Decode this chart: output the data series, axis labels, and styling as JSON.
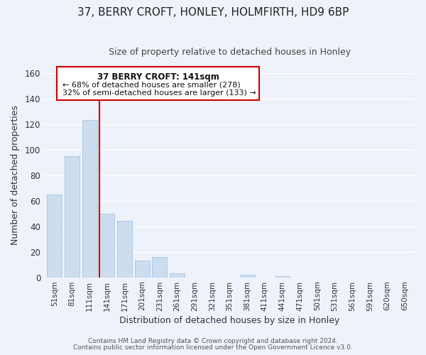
{
  "title": "37, BERRY CROFT, HONLEY, HOLMFIRTH, HD9 6BP",
  "subtitle": "Size of property relative to detached houses in Honley",
  "xlabel": "Distribution of detached houses by size in Honley",
  "ylabel": "Number of detached properties",
  "bar_labels": [
    "51sqm",
    "81sqm",
    "111sqm",
    "141sqm",
    "171sqm",
    "201sqm",
    "231sqm",
    "261sqm",
    "291sqm",
    "321sqm",
    "351sqm",
    "381sqm",
    "411sqm",
    "441sqm",
    "471sqm",
    "501sqm",
    "531sqm",
    "561sqm",
    "591sqm",
    "620sqm",
    "650sqm"
  ],
  "bar_values": [
    65,
    95,
    123,
    50,
    44,
    13,
    16,
    3,
    0,
    0,
    0,
    2,
    0,
    1,
    0,
    0,
    0,
    0,
    0,
    0,
    0
  ],
  "bar_color": "#ccddf0",
  "bar_edge_color": "#a8c4e0",
  "vline_index": 3,
  "vline_color": "#cc0000",
  "ylim": [
    0,
    160
  ],
  "yticks": [
    0,
    20,
    40,
    60,
    80,
    100,
    120,
    140,
    160
  ],
  "annotation_title": "37 BERRY CROFT: 141sqm",
  "annotation_line1": "← 68% of detached houses are smaller (278)",
  "annotation_line2": "32% of semi-detached houses are larger (133) →",
  "annotation_box_facecolor": "#ffffff",
  "annotation_box_edgecolor": "#cc0000",
  "footer1": "Contains HM Land Registry data © Crown copyright and database right 2024.",
  "footer2": "Contains public sector information licensed under the Open Government Licence v3.0.",
  "bg_color": "#eef2fa",
  "grid_color": "#ffffff",
  "title_fontsize": 11,
  "subtitle_fontsize": 9
}
